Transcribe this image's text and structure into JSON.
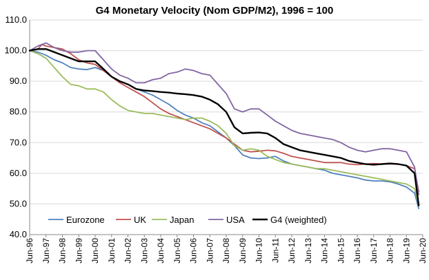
{
  "chart_data": {
    "type": "line",
    "title": "G4 Monetary Velocity (Nom GDP/M2), 1996 = 100",
    "xlabel": "",
    "ylabel": "",
    "ylim": [
      40,
      110
    ],
    "yticks": [
      "40.0",
      "50.0",
      "60.0",
      "70.0",
      "80.0",
      "90.0",
      "100.0",
      "110.0"
    ],
    "x_start": 1996.5,
    "x_end": 2020.5,
    "xticks": [
      "Jun-96",
      "Jun-97",
      "Jun-98",
      "Jun-99",
      "Jun-00",
      "Jun-01",
      "Jun-02",
      "Jun-03",
      "Jun-04",
      "Jun-05",
      "Jun-06",
      "Jun-07",
      "Jun-08",
      "Jun-09",
      "Jun-10",
      "Jun-11",
      "Jun-12",
      "Jun-13",
      "Jun-14",
      "Jun-15",
      "Jun-16",
      "Jun-17",
      "Jun-18",
      "Jun-19",
      "Jun-20"
    ],
    "legend_position": "bottom-left inside plot",
    "series": [
      {
        "name": "Eurozone",
        "color": "#4f81bd",
        "points": [
          [
            1996.5,
            100
          ],
          [
            1997.0,
            99.5
          ],
          [
            1997.5,
            98.5
          ],
          [
            1998.0,
            97
          ],
          [
            1998.5,
            96
          ],
          [
            1999.0,
            94.5
          ],
          [
            1999.5,
            94
          ],
          [
            2000.0,
            93.8
          ],
          [
            2000.5,
            94.5
          ],
          [
            2001.0,
            93.5
          ],
          [
            2001.5,
            91.5
          ],
          [
            2002.0,
            90
          ],
          [
            2002.5,
            89
          ],
          [
            2003.0,
            87.5
          ],
          [
            2003.5,
            86.5
          ],
          [
            2004.0,
            85.5
          ],
          [
            2004.5,
            84
          ],
          [
            2005.0,
            82.5
          ],
          [
            2005.5,
            80.5
          ],
          [
            2006.0,
            79
          ],
          [
            2006.5,
            78
          ],
          [
            2007.0,
            76.5
          ],
          [
            2007.5,
            75.5
          ],
          [
            2008.0,
            73.5
          ],
          [
            2008.5,
            71.5
          ],
          [
            2009.0,
            69
          ],
          [
            2009.5,
            66
          ],
          [
            2010.0,
            65
          ],
          [
            2010.5,
            64.8
          ],
          [
            2011.0,
            65
          ],
          [
            2011.5,
            65.5
          ],
          [
            2012.0,
            64
          ],
          [
            2012.5,
            63
          ],
          [
            2013.0,
            62.5
          ],
          [
            2013.5,
            62
          ],
          [
            2014.0,
            61.5
          ],
          [
            2014.5,
            61
          ],
          [
            2015.0,
            60
          ],
          [
            2015.5,
            59.5
          ],
          [
            2016.0,
            59
          ],
          [
            2016.5,
            58.5
          ],
          [
            2017.0,
            57.8
          ],
          [
            2017.5,
            57.5
          ],
          [
            2018.0,
            57.5
          ],
          [
            2018.5,
            57.2
          ],
          [
            2019.0,
            56.5
          ],
          [
            2019.5,
            55.5
          ],
          [
            2020.0,
            53.5
          ],
          [
            2020.25,
            48.5
          ]
        ]
      },
      {
        "name": "UK",
        "color": "#c0504d",
        "points": [
          [
            1996.5,
            100
          ],
          [
            1997.0,
            100.5
          ],
          [
            1997.25,
            102
          ],
          [
            1997.5,
            101.5
          ],
          [
            1998.0,
            101
          ],
          [
            1998.5,
            100.5
          ],
          [
            1999.0,
            99
          ],
          [
            1999.5,
            97
          ],
          [
            2000.0,
            96
          ],
          [
            2000.5,
            95.5
          ],
          [
            2001.0,
            93.5
          ],
          [
            2001.5,
            91.5
          ],
          [
            2002.0,
            89.5
          ],
          [
            2002.5,
            88
          ],
          [
            2003.0,
            86.5
          ],
          [
            2003.5,
            85
          ],
          [
            2004.0,
            83
          ],
          [
            2004.5,
            81
          ],
          [
            2005.0,
            79.5
          ],
          [
            2005.5,
            78.5
          ],
          [
            2006.0,
            77.5
          ],
          [
            2006.5,
            76.5
          ],
          [
            2007.0,
            75.5
          ],
          [
            2007.5,
            74.5
          ],
          [
            2008.0,
            73
          ],
          [
            2008.5,
            71.5
          ],
          [
            2009.0,
            69.5
          ],
          [
            2009.5,
            67.5
          ],
          [
            2010.0,
            67
          ],
          [
            2010.5,
            67.2
          ],
          [
            2011.0,
            67.5
          ],
          [
            2011.5,
            67.3
          ],
          [
            2012.0,
            66.5
          ],
          [
            2012.5,
            65.5
          ],
          [
            2013.0,
            65
          ],
          [
            2013.5,
            64.5
          ],
          [
            2014.0,
            64
          ],
          [
            2014.5,
            63.5
          ],
          [
            2015.0,
            63.5
          ],
          [
            2015.5,
            63.5
          ],
          [
            2016.0,
            63
          ],
          [
            2016.5,
            62.8
          ],
          [
            2017.0,
            63
          ],
          [
            2017.5,
            63.2
          ],
          [
            2018.0,
            63
          ],
          [
            2018.5,
            63
          ],
          [
            2019.0,
            63
          ],
          [
            2019.5,
            62.5
          ],
          [
            2020.0,
            61.5
          ],
          [
            2020.25,
            54
          ]
        ]
      },
      {
        "name": "Japan",
        "color": "#9bbb59",
        "points": [
          [
            1996.5,
            100
          ],
          [
            1997.0,
            99
          ],
          [
            1997.5,
            97.5
          ],
          [
            1998.0,
            94.5
          ],
          [
            1998.5,
            91.5
          ],
          [
            1999.0,
            89
          ],
          [
            1999.5,
            88.5
          ],
          [
            2000.0,
            87.5
          ],
          [
            2000.5,
            87.5
          ],
          [
            2001.0,
            86.5
          ],
          [
            2001.5,
            84
          ],
          [
            2002.0,
            82
          ],
          [
            2002.5,
            80.5
          ],
          [
            2003.0,
            80
          ],
          [
            2003.5,
            79.5
          ],
          [
            2004.0,
            79.5
          ],
          [
            2004.5,
            79
          ],
          [
            2005.0,
            78.5
          ],
          [
            2005.5,
            78
          ],
          [
            2006.0,
            77.5
          ],
          [
            2006.5,
            78
          ],
          [
            2007.0,
            78
          ],
          [
            2007.5,
            77
          ],
          [
            2008.0,
            75.5
          ],
          [
            2008.5,
            73
          ],
          [
            2009.0,
            69
          ],
          [
            2009.5,
            67.5
          ],
          [
            2010.0,
            68
          ],
          [
            2010.5,
            67.5
          ],
          [
            2011.0,
            65.5
          ],
          [
            2011.5,
            64.5
          ],
          [
            2012.0,
            63.5
          ],
          [
            2012.5,
            63
          ],
          [
            2013.0,
            62.5
          ],
          [
            2013.5,
            62
          ],
          [
            2014.0,
            61.5
          ],
          [
            2014.5,
            61.5
          ],
          [
            2015.0,
            61
          ],
          [
            2015.5,
            60.5
          ],
          [
            2016.0,
            60
          ],
          [
            2016.5,
            59.5
          ],
          [
            2017.0,
            59
          ],
          [
            2017.5,
            58.5
          ],
          [
            2018.0,
            58
          ],
          [
            2018.5,
            57.5
          ],
          [
            2019.0,
            57
          ],
          [
            2019.5,
            56.5
          ],
          [
            2020.0,
            55
          ],
          [
            2020.25,
            49.5
          ]
        ]
      },
      {
        "name": "USA",
        "color": "#8064a2",
        "points": [
          [
            1996.5,
            100
          ],
          [
            1997.0,
            101.5
          ],
          [
            1997.5,
            102.5
          ],
          [
            1998.0,
            101
          ],
          [
            1998.5,
            100
          ],
          [
            1999.0,
            99.5
          ],
          [
            1999.5,
            99.5
          ],
          [
            2000.0,
            100
          ],
          [
            2000.5,
            100
          ],
          [
            2001.0,
            97
          ],
          [
            2001.5,
            94
          ],
          [
            2002.0,
            92
          ],
          [
            2002.5,
            91
          ],
          [
            2003.0,
            89.5
          ],
          [
            2003.5,
            89.5
          ],
          [
            2004.0,
            90.5
          ],
          [
            2004.5,
            91
          ],
          [
            2005.0,
            92.5
          ],
          [
            2005.5,
            93
          ],
          [
            2006.0,
            94
          ],
          [
            2006.5,
            93.5
          ],
          [
            2007.0,
            92.5
          ],
          [
            2007.5,
            92
          ],
          [
            2008.0,
            89
          ],
          [
            2008.5,
            86
          ],
          [
            2009.0,
            81
          ],
          [
            2009.5,
            80
          ],
          [
            2010.0,
            81
          ],
          [
            2010.5,
            81
          ],
          [
            2011.0,
            79
          ],
          [
            2011.5,
            77
          ],
          [
            2012.0,
            75.5
          ],
          [
            2012.5,
            74
          ],
          [
            2013.0,
            73
          ],
          [
            2013.5,
            72.5
          ],
          [
            2014.0,
            72
          ],
          [
            2014.5,
            71.5
          ],
          [
            2015.0,
            71
          ],
          [
            2015.5,
            70
          ],
          [
            2016.0,
            68.5
          ],
          [
            2016.5,
            67.5
          ],
          [
            2017.0,
            67
          ],
          [
            2017.5,
            67.5
          ],
          [
            2018.0,
            68
          ],
          [
            2018.5,
            68
          ],
          [
            2019.0,
            67.5
          ],
          [
            2019.5,
            67
          ],
          [
            2020.0,
            62
          ],
          [
            2020.25,
            53
          ]
        ]
      },
      {
        "name": "G4 (weighted)",
        "color": "#000000",
        "points": [
          [
            1996.5,
            100
          ],
          [
            1997.0,
            100.5
          ],
          [
            1997.5,
            100.5
          ],
          [
            1998.0,
            99.5
          ],
          [
            1998.5,
            98.5
          ],
          [
            1999.0,
            97.5
          ],
          [
            1999.5,
            96.5
          ],
          [
            2000.0,
            96.5
          ],
          [
            2000.5,
            96.5
          ],
          [
            2001.0,
            94
          ],
          [
            2001.5,
            91.5
          ],
          [
            2002.0,
            90
          ],
          [
            2002.5,
            89
          ],
          [
            2003.0,
            87.5
          ],
          [
            2003.5,
            87
          ],
          [
            2004.0,
            86.8
          ],
          [
            2004.5,
            86.5
          ],
          [
            2005.0,
            86.3
          ],
          [
            2005.5,
            86
          ],
          [
            2006.0,
            85.8
          ],
          [
            2006.5,
            85.5
          ],
          [
            2007.0,
            85
          ],
          [
            2007.5,
            84
          ],
          [
            2008.0,
            82.5
          ],
          [
            2008.5,
            80
          ],
          [
            2009.0,
            75
          ],
          [
            2009.5,
            73
          ],
          [
            2010.0,
            73.2
          ],
          [
            2010.5,
            73.3
          ],
          [
            2011.0,
            73
          ],
          [
            2011.5,
            71.5
          ],
          [
            2012.0,
            69.5
          ],
          [
            2012.5,
            68.5
          ],
          [
            2013.0,
            67.5
          ],
          [
            2013.5,
            67
          ],
          [
            2014.0,
            66.5
          ],
          [
            2014.5,
            66
          ],
          [
            2015.0,
            65.5
          ],
          [
            2015.5,
            65
          ],
          [
            2016.0,
            64
          ],
          [
            2016.5,
            63.5
          ],
          [
            2017.0,
            63
          ],
          [
            2017.5,
            62.8
          ],
          [
            2018.0,
            63
          ],
          [
            2018.5,
            63.2
          ],
          [
            2019.0,
            63
          ],
          [
            2019.5,
            62.5
          ],
          [
            2020.0,
            60
          ],
          [
            2020.25,
            49.5
          ]
        ]
      }
    ]
  }
}
